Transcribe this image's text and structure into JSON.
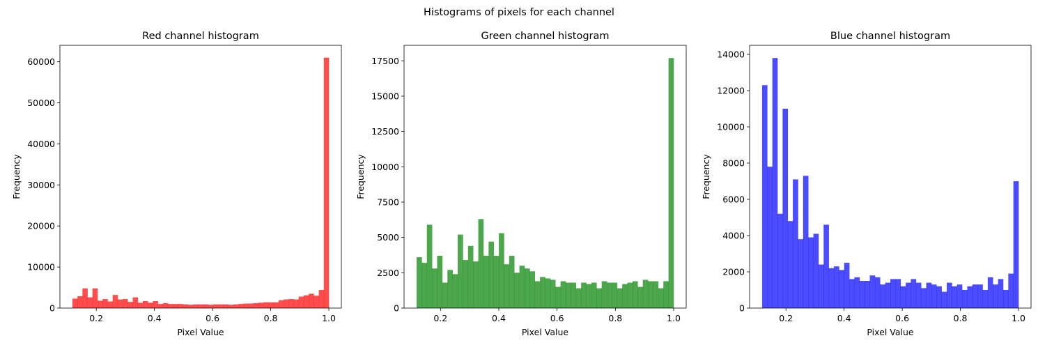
{
  "figure": {
    "suptitle": "Histograms of pixels for each channel"
  },
  "chart_data": [
    {
      "type": "bar",
      "title": "Red channel histogram",
      "xlabel": "Pixel Value",
      "ylabel": "Frequency",
      "color": "#ff0000",
      "opacity": 0.7,
      "xlim": [
        0.075,
        1.043
      ],
      "ylim": [
        0,
        64000
      ],
      "xticks": [
        0.2,
        0.4,
        0.6,
        0.8,
        1.0
      ],
      "xtick_labels": [
        "0.2",
        "0.4",
        "0.6",
        "0.8",
        "1.0"
      ],
      "yticks": [
        0,
        10000,
        20000,
        30000,
        40000,
        50000,
        60000
      ],
      "ytick_labels": [
        "0",
        "10000",
        "20000",
        "30000",
        "40000",
        "50000",
        "60000"
      ],
      "bin_range": [
        0.118,
        1.0
      ],
      "values": [
        2300,
        2900,
        4800,
        2600,
        4800,
        1800,
        2200,
        1600,
        3200,
        2100,
        2200,
        1500,
        2600,
        1300,
        1700,
        1300,
        1700,
        1000,
        1200,
        1000,
        1000,
        1000,
        900,
        800,
        900,
        900,
        900,
        800,
        900,
        900,
        900,
        800,
        900,
        1000,
        1100,
        1100,
        1200,
        1300,
        1400,
        1400,
        1400,
        1900,
        2100,
        2200,
        2100,
        2800,
        3100,
        3500,
        3000,
        4400,
        61000
      ]
    },
    {
      "type": "bar",
      "title": "Green channel histogram",
      "xlabel": "Pixel Value",
      "ylabel": "Frequency",
      "color": "#008000",
      "opacity": 0.7,
      "xlim": [
        0.075,
        1.043
      ],
      "ylim": [
        0,
        18600
      ],
      "xticks": [
        0.2,
        0.4,
        0.6,
        0.8,
        1.0
      ],
      "xtick_labels": [
        "0.2",
        "0.4",
        "0.6",
        "0.8",
        "1.0"
      ],
      "yticks": [
        0,
        2500,
        5000,
        7500,
        10000,
        12500,
        15000,
        17500
      ],
      "ytick_labels": [
        "0",
        "2500",
        "5000",
        "7500",
        "10000",
        "12500",
        "15000",
        "17500"
      ],
      "bin_range": [
        0.118,
        1.0
      ],
      "values": [
        3600,
        3200,
        5900,
        2800,
        3700,
        1800,
        2700,
        2400,
        5200,
        3400,
        4400,
        3300,
        6300,
        3700,
        4700,
        3700,
        5300,
        3100,
        3700,
        2500,
        3000,
        2800,
        2600,
        1900,
        2200,
        2100,
        2000,
        1500,
        1900,
        1800,
        1800,
        1400,
        1800,
        1700,
        1800,
        1400,
        1900,
        1800,
        1800,
        1400,
        1700,
        1800,
        1900,
        1500,
        2000,
        1900,
        1900,
        1400,
        1900,
        17700
      ]
    },
    {
      "type": "bar",
      "title": "Blue channel histogram",
      "xlabel": "Pixel Value",
      "ylabel": "Frequency",
      "color": "#0000ff",
      "opacity": 0.7,
      "xlim": [
        0.075,
        1.043
      ],
      "ylim": [
        0,
        14500
      ],
      "xticks": [
        0.2,
        0.4,
        0.6,
        0.8,
        1.0
      ],
      "xtick_labels": [
        "0.2",
        "0.4",
        "0.6",
        "0.8",
        "1.0"
      ],
      "yticks": [
        0,
        2000,
        4000,
        6000,
        8000,
        10000,
        12000,
        14000
      ],
      "ytick_labels": [
        "0",
        "2000",
        "4000",
        "6000",
        "8000",
        "10000",
        "12000",
        "14000"
      ],
      "bin_range": [
        0.118,
        1.0
      ],
      "values": [
        12300,
        7800,
        13800,
        5200,
        11000,
        4800,
        7100,
        3800,
        7300,
        3900,
        4100,
        2400,
        4600,
        2200,
        2300,
        2100,
        2500,
        1600,
        1700,
        1500,
        1500,
        1800,
        1700,
        1300,
        1400,
        1600,
        1600,
        1200,
        1400,
        1600,
        1400,
        1100,
        1400,
        1300,
        1200,
        900,
        1400,
        1200,
        1300,
        1000,
        1200,
        1300,
        1300,
        1000,
        1700,
        1300,
        1600,
        1000,
        1900,
        7000
      ]
    }
  ]
}
